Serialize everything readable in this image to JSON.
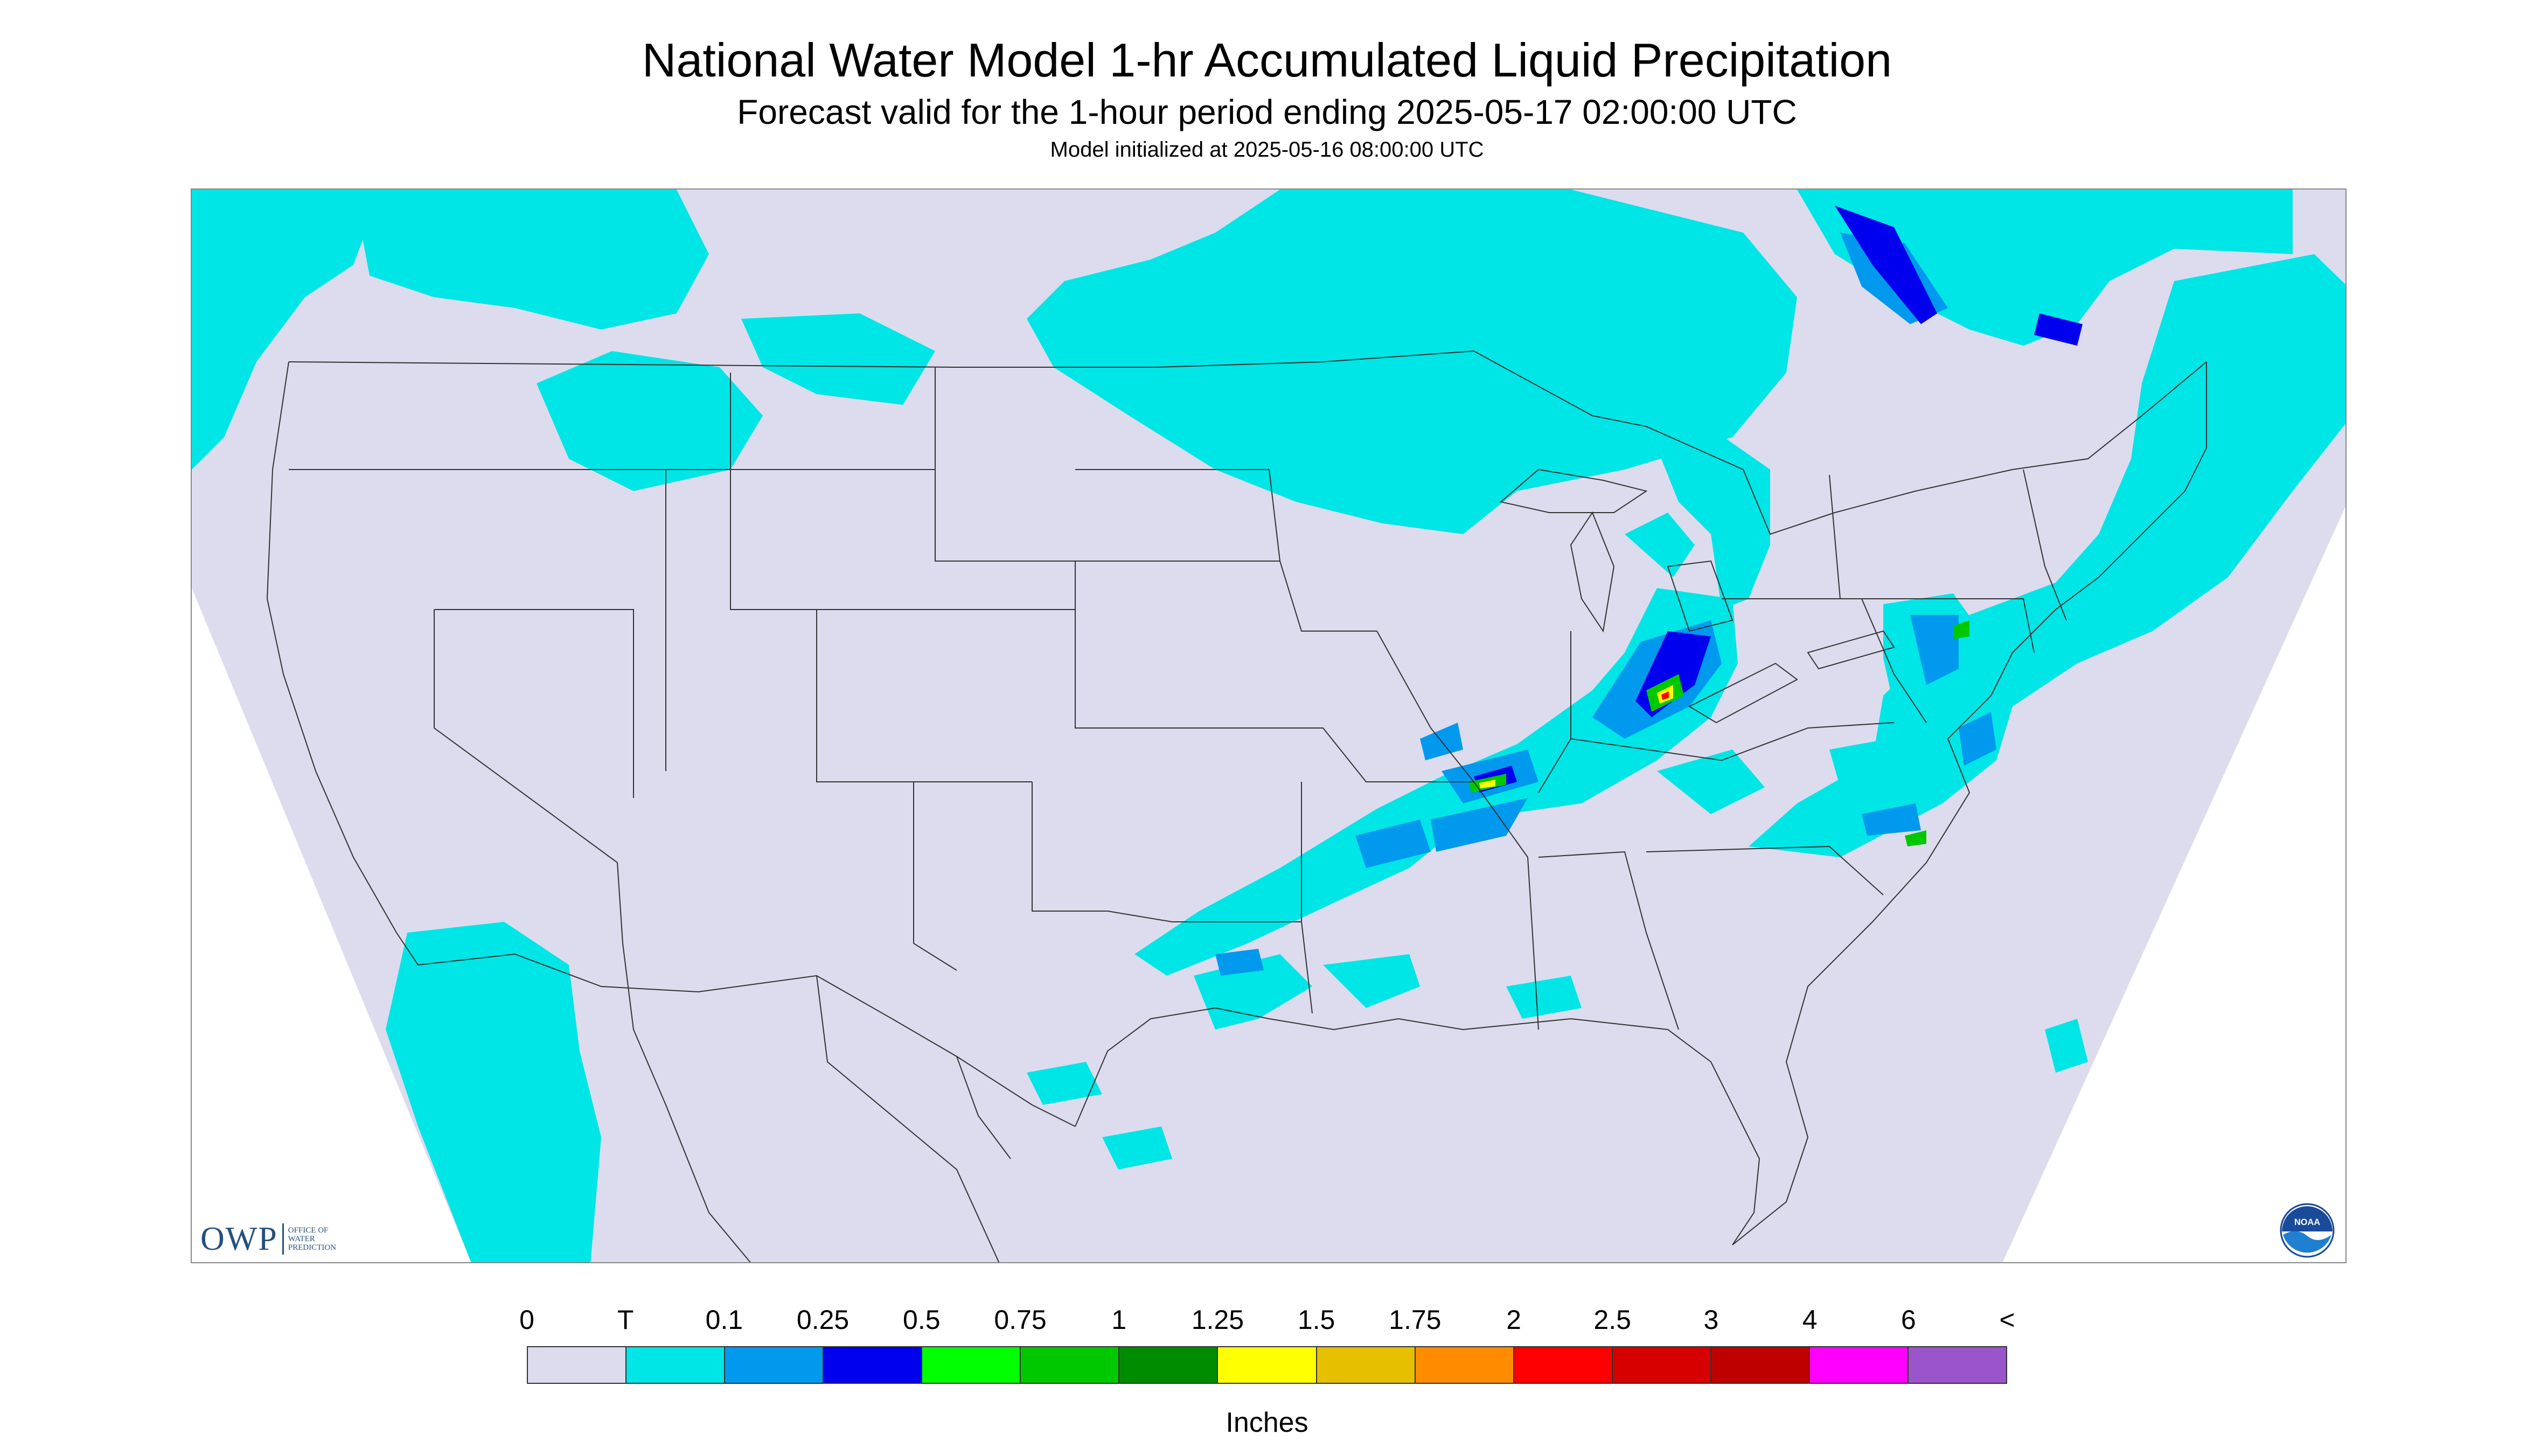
{
  "header": {
    "title": "National Water Model 1-hr Accumulated Liquid Precipitation",
    "subtitle": "Forecast valid for the 1-hour period ending 2025-05-17 02:00:00 UTC",
    "init_line": "Model initialized at 2025-05-16 08:00:00 UTC"
  },
  "map": {
    "background_color": "#dcdcee",
    "outside_color": "#ffffff",
    "boundary_color": "#333333",
    "region": "Contiguous United States"
  },
  "logos": {
    "owp_letters": "OWP",
    "owp_text_lines": [
      "OFFICE OF",
      "WATER",
      "PREDICTION"
    ],
    "noaa_text": "NOAA"
  },
  "legend": {
    "labels": [
      "0",
      "T",
      "0.1",
      "0.25",
      "0.5",
      "0.75",
      "1",
      "1.25",
      "1.5",
      "1.75",
      "2",
      "2.5",
      "3",
      "4",
      "6",
      "<"
    ],
    "colors": [
      "#dcdcee",
      "#00e5e5",
      "#0099ee",
      "#0000ee",
      "#00ff00",
      "#00c800",
      "#008c00",
      "#ffff00",
      "#e5bf00",
      "#ff8c00",
      "#ff0000",
      "#d70000",
      "#be0000",
      "#ff00ff",
      "#9955c9"
    ],
    "units": "Inches"
  }
}
